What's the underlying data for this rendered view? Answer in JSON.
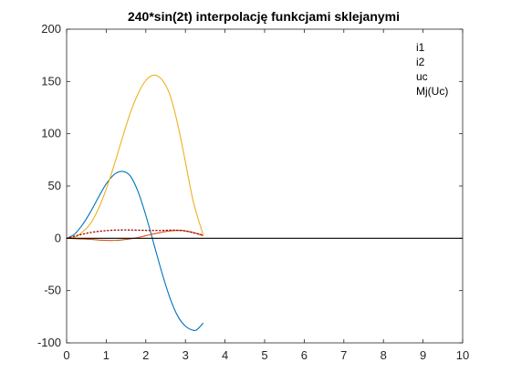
{
  "chart_data": {
    "type": "line",
    "title": "240*sin(2t) interpolację funkcjami sklejanymi",
    "xlabel": "",
    "ylabel": "",
    "xlim": [
      0,
      10
    ],
    "ylim": [
      -100,
      200
    ],
    "xticks": [
      0,
      1,
      2,
      3,
      4,
      5,
      6,
      7,
      8,
      9,
      10
    ],
    "yticks": [
      -100,
      -50,
      0,
      50,
      100,
      150,
      200
    ],
    "grid": false,
    "legend_position": "top-right",
    "series": [
      {
        "name": "i1",
        "color": "#0072BD",
        "style": "solid",
        "x": [
          0,
          0.2,
          0.4,
          0.6,
          0.8,
          1.0,
          1.2,
          1.4,
          1.6,
          1.8,
          2.0,
          2.2,
          2.4,
          2.6,
          2.8,
          3.0,
          3.2,
          3.3,
          3.45
        ],
        "y": [
          0,
          4,
          13,
          25,
          39,
          52,
          61,
          64,
          60,
          45,
          22,
          -5,
          -32,
          -56,
          -74,
          -84,
          -88,
          -87,
          -81
        ]
      },
      {
        "name": "i2",
        "color": "#D95319",
        "style": "solid",
        "x": [
          0,
          0.3,
          0.6,
          0.9,
          1.2,
          1.4,
          1.7,
          2.0,
          2.3,
          2.6,
          2.9,
          3.2,
          3.45
        ],
        "y": [
          0,
          -0.5,
          -1,
          -1.8,
          -2,
          -1.5,
          0,
          2.5,
          5,
          7,
          7.5,
          5.5,
          2.5
        ]
      },
      {
        "name": "uc",
        "color": "#EDB120",
        "style": "solid",
        "x": [
          0,
          0.2,
          0.4,
          0.6,
          0.8,
          1.0,
          1.2,
          1.4,
          1.6,
          1.8,
          2.0,
          2.2,
          2.4,
          2.6,
          2.8,
          3.0,
          3.2,
          3.45
        ],
        "y": [
          0,
          1,
          6,
          14,
          28,
          47,
          70,
          95,
          119,
          138,
          151,
          156,
          152,
          138,
          110,
          73,
          35,
          3
        ]
      },
      {
        "name": "Mj(Uc)",
        "color": "#A00000",
        "style": "dotted",
        "x": [
          0,
          0.3,
          0.6,
          0.9,
          1.2,
          1.5,
          1.8,
          2.1,
          2.4,
          2.7,
          3.0,
          3.45
        ],
        "y": [
          0,
          3,
          5.5,
          7,
          7.8,
          8,
          7.8,
          7.5,
          7.5,
          7.8,
          7,
          3
        ]
      },
      {
        "name": "",
        "color": "#000000",
        "style": "solid",
        "x": [
          0,
          10
        ],
        "y": [
          0,
          0
        ]
      }
    ]
  }
}
